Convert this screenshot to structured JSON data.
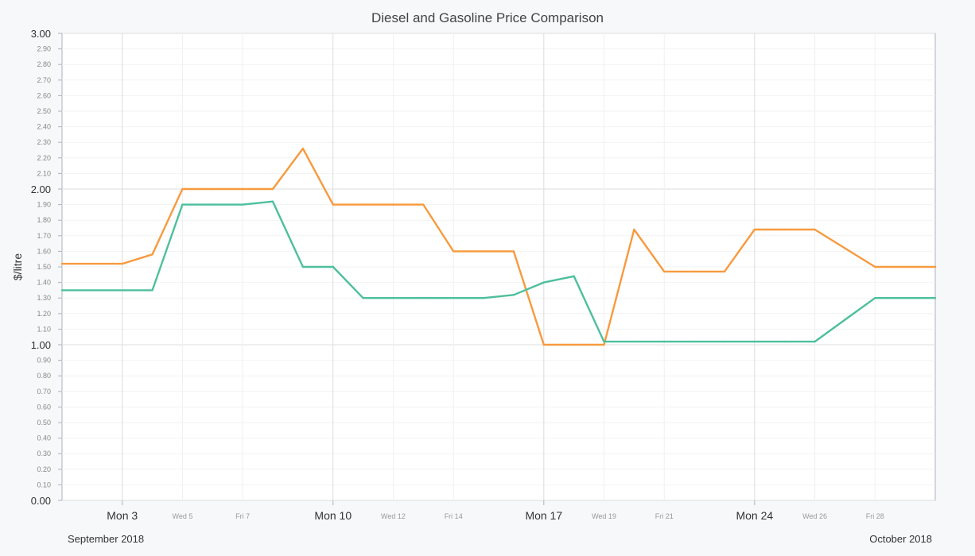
{
  "chart_data": {
    "type": "line",
    "title": "Diesel and Gasoline Price Comparison",
    "xlabel": "",
    "ylabel": "$/litre",
    "ylim": [
      0,
      3
    ],
    "y_major_ticks": [
      "0.00",
      "1.00",
      "2.00",
      "3.00"
    ],
    "y_minor_ticks": [
      "0.10",
      "0.20",
      "0.30",
      "0.40",
      "0.50",
      "0.60",
      "0.70",
      "0.80",
      "0.90",
      "1.10",
      "1.20",
      "1.30",
      "1.40",
      "1.50",
      "1.60",
      "1.70",
      "1.80",
      "1.90",
      "2.10",
      "2.20",
      "2.30",
      "2.40",
      "2.50",
      "2.60",
      "2.70",
      "2.80",
      "2.90"
    ],
    "x_major_ticks": [
      {
        "label": "Mon 3",
        "day": 3
      },
      {
        "label": "Mon 10",
        "day": 10
      },
      {
        "label": "Mon 17",
        "day": 17
      },
      {
        "label": "Mon 24",
        "day": 24
      }
    ],
    "x_minor_ticks": [
      {
        "label": "Wed 5",
        "day": 5
      },
      {
        "label": "Fri 7",
        "day": 7
      },
      {
        "label": "Wed 12",
        "day": 12
      },
      {
        "label": "Fri 14",
        "day": 14
      },
      {
        "label": "Wed 19",
        "day": 19
      },
      {
        "label": "Fri 21",
        "day": 21
      },
      {
        "label": "Wed 26",
        "day": 26
      },
      {
        "label": "Fri 28",
        "day": 28
      }
    ],
    "month_labels": {
      "left": "September 2018",
      "right": "October 2018"
    },
    "x_range_days": [
      1,
      30
    ],
    "series": [
      {
        "color": "#f79a3e",
        "points": [
          [
            1,
            1.52
          ],
          [
            3,
            1.52
          ],
          [
            4,
            1.58
          ],
          [
            5,
            2.0
          ],
          [
            6,
            2.0
          ],
          [
            7,
            2.0
          ],
          [
            8,
            2.0
          ],
          [
            9,
            2.26
          ],
          [
            10,
            1.9
          ],
          [
            11,
            1.9
          ],
          [
            12,
            1.9
          ],
          [
            13,
            1.9
          ],
          [
            14,
            1.6
          ],
          [
            15,
            1.6
          ],
          [
            16,
            1.6
          ],
          [
            17,
            1.0
          ],
          [
            18,
            1.0
          ],
          [
            19,
            1.0
          ],
          [
            20,
            1.74
          ],
          [
            21,
            1.47
          ],
          [
            22,
            1.47
          ],
          [
            23,
            1.47
          ],
          [
            24,
            1.74
          ],
          [
            25,
            1.74
          ],
          [
            26,
            1.74
          ],
          [
            27,
            1.62
          ],
          [
            28,
            1.5
          ],
          [
            30,
            1.5
          ]
        ]
      },
      {
        "color": "#4dbf9d",
        "points": [
          [
            1,
            1.35
          ],
          [
            3,
            1.35
          ],
          [
            4,
            1.35
          ],
          [
            5,
            1.9
          ],
          [
            6,
            1.9
          ],
          [
            7,
            1.9
          ],
          [
            8,
            1.92
          ],
          [
            9,
            1.5
          ],
          [
            10,
            1.5
          ],
          [
            11,
            1.3
          ],
          [
            12,
            1.3
          ],
          [
            13,
            1.3
          ],
          [
            14,
            1.3
          ],
          [
            15,
            1.3
          ],
          [
            16,
            1.32
          ],
          [
            17,
            1.4
          ],
          [
            18,
            1.44
          ],
          [
            19,
            1.02
          ],
          [
            20,
            1.02
          ],
          [
            21,
            1.02
          ],
          [
            22,
            1.02
          ],
          [
            23,
            1.02
          ],
          [
            24,
            1.02
          ],
          [
            25,
            1.02
          ],
          [
            26,
            1.02
          ],
          [
            27,
            1.16
          ],
          [
            28,
            1.3
          ],
          [
            30,
            1.3
          ]
        ]
      }
    ],
    "grid": true,
    "legend": "none"
  }
}
